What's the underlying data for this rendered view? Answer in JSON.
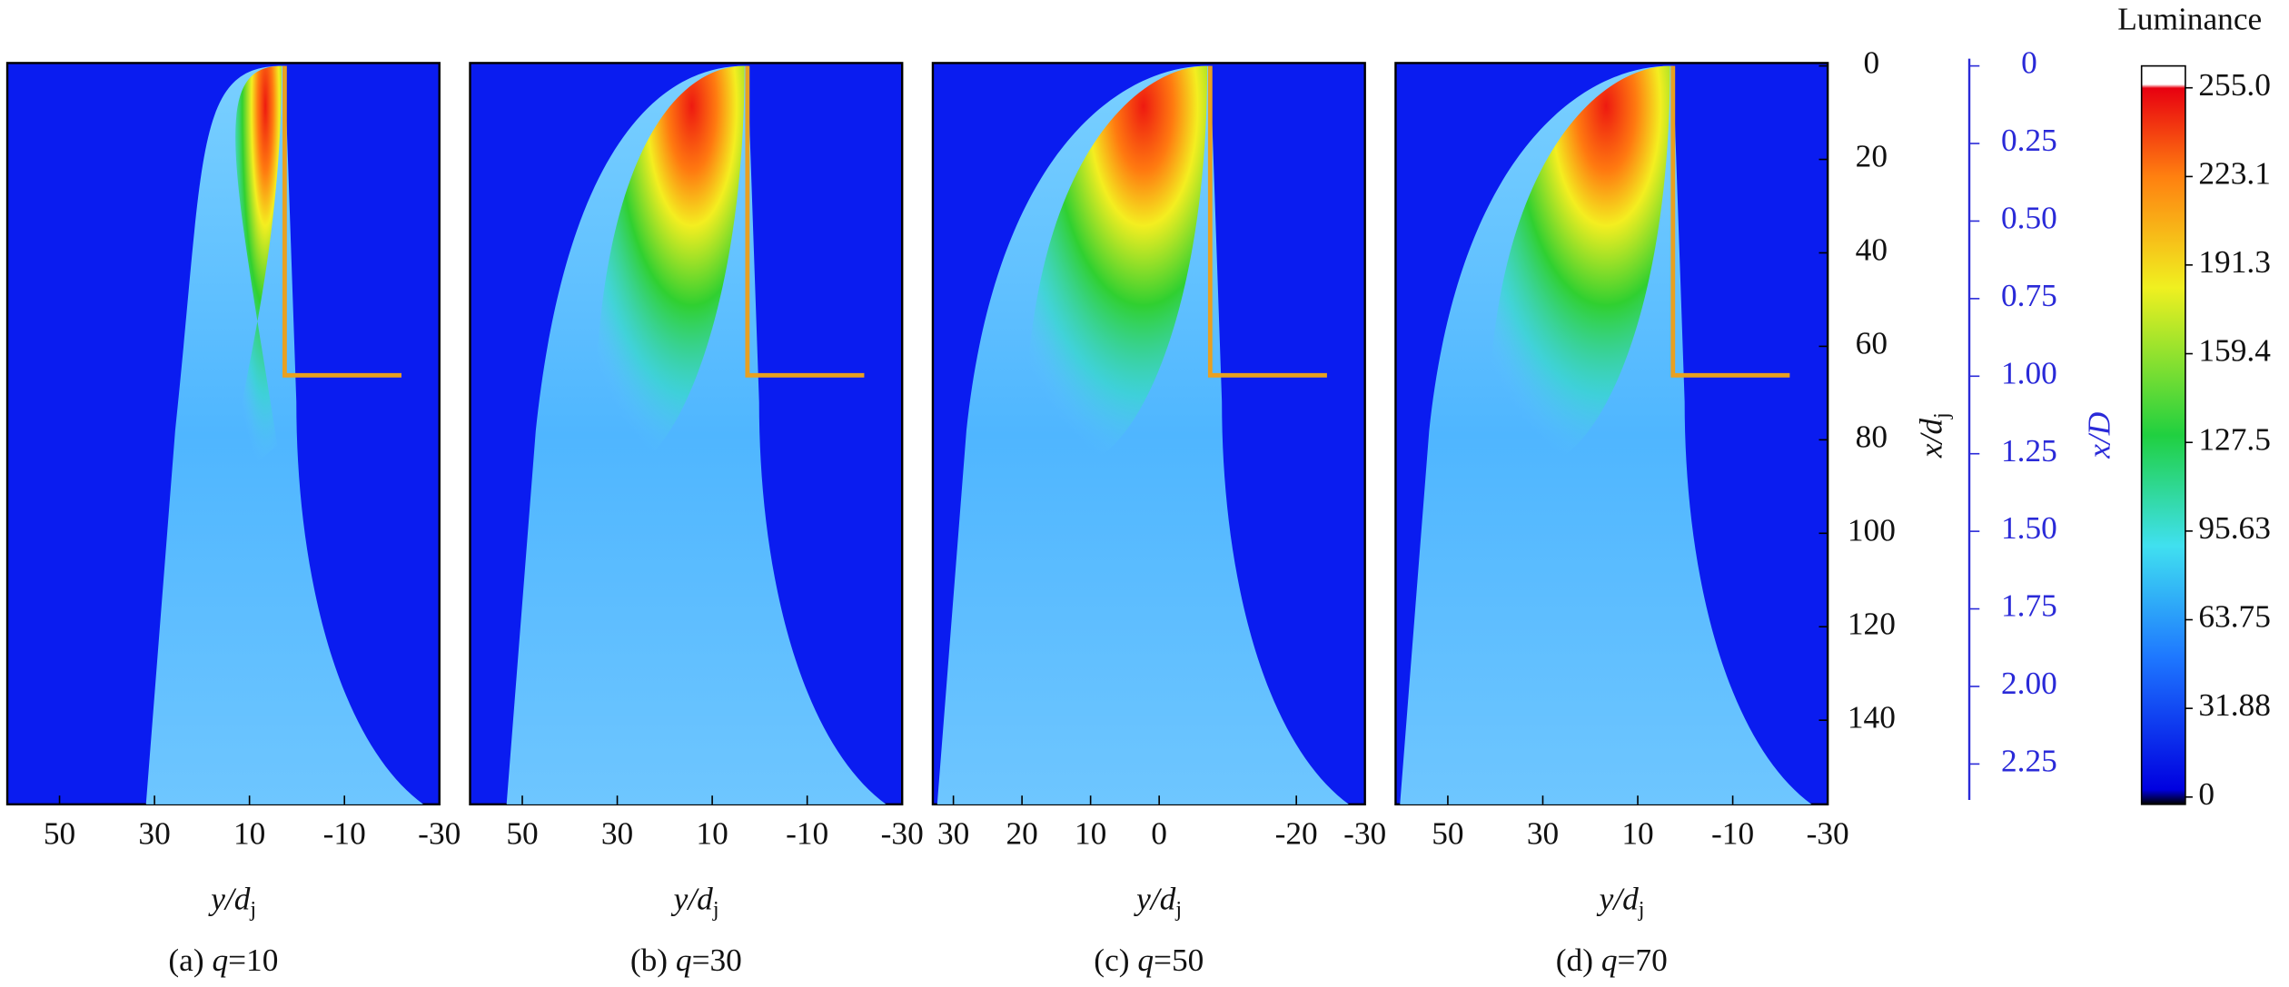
{
  "figure": {
    "panels": [
      {
        "tag": "(a)",
        "var": "q",
        "eq": "=10",
        "xlim": [
          61,
          -30
        ],
        "xticks": [
          50,
          30,
          10,
          -10,
          -30
        ],
        "xlabel": {
          "main": "y/d",
          "sub": "j"
        }
      },
      {
        "tag": "(b)",
        "var": "q",
        "eq": "=30",
        "xlim": [
          61,
          -30
        ],
        "xticks": [
          50,
          30,
          10,
          -10,
          -30
        ],
        "xlabel": {
          "main": "y/d",
          "sub": "j"
        }
      },
      {
        "tag": "(c)",
        "var": "q",
        "eq": "=50",
        "xlim": [
          33,
          -30
        ],
        "xticks": [
          30,
          20,
          10,
          0,
          -20,
          -30
        ],
        "xlabel": {
          "main": "y/d",
          "sub": "j"
        }
      },
      {
        "tag": "(d)",
        "var": "q",
        "eq": "=70",
        "xlim": [
          61,
          -30
        ],
        "xticks": [
          50,
          30,
          10,
          -10,
          -30
        ],
        "xlabel": {
          "main": "y/d",
          "sub": "j"
        }
      }
    ],
    "yaxis": {
      "label": {
        "main": "x/d",
        "sub": "j"
      },
      "ylim": [
        0,
        158
      ],
      "yticks": [
        0,
        20,
        40,
        60,
        80,
        100,
        120,
        140
      ]
    },
    "y2axis": {
      "label": "x/D",
      "ylim": [
        0,
        2.38
      ],
      "yticks": [
        0,
        {
          "value": 0.25,
          "label": "0.25"
        },
        {
          "value": 0.5,
          "label": "0.50"
        },
        {
          "value": 0.75,
          "label": "0.75"
        },
        {
          "value": 1,
          "label": "1.00"
        },
        {
          "value": 1.25,
          "label": "1.25"
        },
        {
          "value": 1.5,
          "label": "1.50"
        },
        {
          "value": 1.75,
          "label": "1.75"
        },
        {
          "value": 2,
          "label": "2.00"
        },
        {
          "value": 2.25,
          "label": "2.25"
        }
      ]
    },
    "colorbar": {
      "title": "Luminance",
      "clim": [
        0,
        255
      ],
      "ticks": [
        {
          "value": 255,
          "label": "255.0"
        },
        223.1,
        191.3,
        159.4,
        127.5,
        95.63,
        63.75,
        31.88,
        0
      ]
    }
  }
}
